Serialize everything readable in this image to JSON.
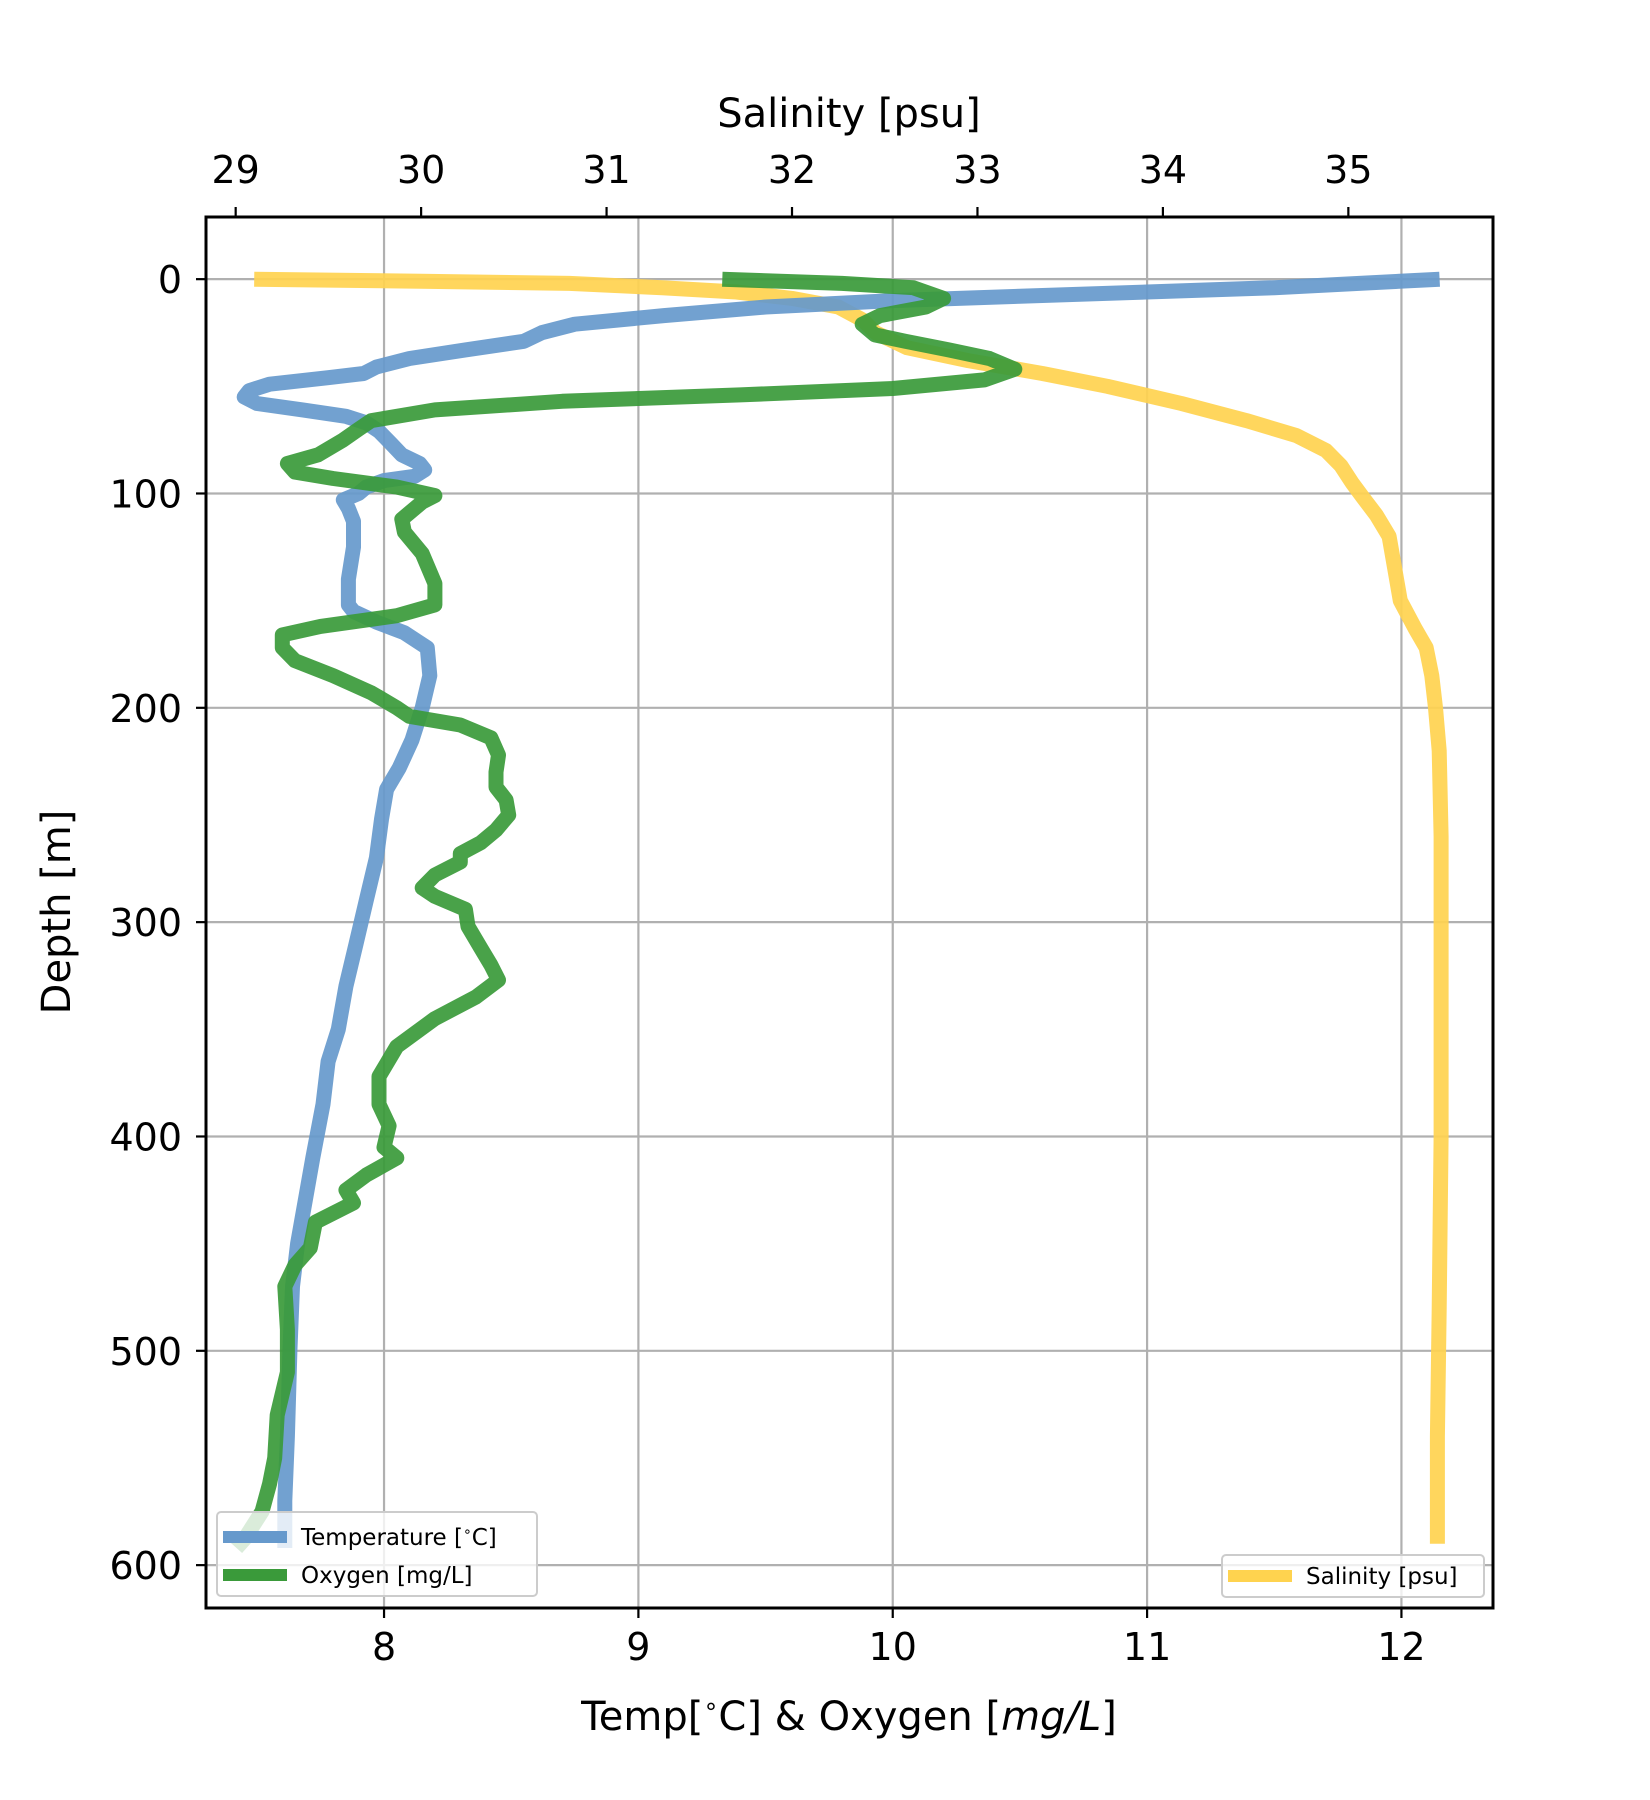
{
  "chart_data": {
    "type": "line",
    "xlabel": "Temp[$^\\circ$C] & Oxygen [$mg/L$]",
    "xlabel_parts": {
      "temp": "Temp[",
      "deg": "∘",
      "c_and": "C] & Oxygen [",
      "unit": "mg/L",
      "close": "]"
    },
    "x2label": "Salinity [psu]",
    "ylabel": "Depth [m]",
    "xlim": [
      7.3,
      12.36
    ],
    "x2lim": [
      28.84,
      35.78
    ],
    "ylim": [
      620,
      -29
    ],
    "y_inverted": true,
    "grid": true,
    "xticks": [
      8,
      9,
      10,
      11,
      12
    ],
    "x2ticks": [
      29,
      30,
      31,
      32,
      33,
      34,
      35
    ],
    "yticks": [
      0,
      100,
      200,
      300,
      400,
      500,
      600
    ],
    "legend_main": {
      "placement": "lower-left",
      "entries": [
        "Temperature [$^\\circ$C]",
        "Oxygen [mg/L]"
      ],
      "temp_parts": {
        "a": "Temperature [",
        "deg": "∘",
        "b": "C]"
      },
      "oxygen_label": "Oxygen [mg/L]"
    },
    "legend_salinity": {
      "placement": "lower-right",
      "label": "Salinity [psu]"
    },
    "series": [
      {
        "name": "Temperature [°C]",
        "axis": "bottom",
        "color": "#6699cc",
        "points": [
          [
            12.15,
            0
          ],
          [
            11.5,
            4
          ],
          [
            10.5,
            8
          ],
          [
            10.0,
            10
          ],
          [
            9.5,
            13
          ],
          [
            9.1,
            17
          ],
          [
            8.75,
            21
          ],
          [
            8.62,
            25
          ],
          [
            8.55,
            29
          ],
          [
            8.32,
            33
          ],
          [
            8.1,
            37
          ],
          [
            7.97,
            41
          ],
          [
            7.92,
            44
          ],
          [
            7.78,
            46
          ],
          [
            7.55,
            49
          ],
          [
            7.47,
            52
          ],
          [
            7.45,
            55
          ],
          [
            7.5,
            58
          ],
          [
            7.68,
            61
          ],
          [
            7.85,
            64
          ],
          [
            7.93,
            67
          ],
          [
            7.98,
            71
          ],
          [
            8.03,
            77
          ],
          [
            8.07,
            82
          ],
          [
            8.14,
            86
          ],
          [
            8.16,
            89
          ],
          [
            8.12,
            92
          ],
          [
            8.0,
            94
          ],
          [
            7.93,
            97
          ],
          [
            7.9,
            100
          ],
          [
            7.84,
            103
          ],
          [
            7.86,
            107
          ],
          [
            7.88,
            113
          ],
          [
            7.88,
            125
          ],
          [
            7.86,
            140
          ],
          [
            7.86,
            152
          ],
          [
            7.88,
            155
          ],
          [
            7.97,
            160
          ],
          [
            8.08,
            165
          ],
          [
            8.17,
            172
          ],
          [
            8.18,
            185
          ],
          [
            8.15,
            200
          ],
          [
            8.11,
            215
          ],
          [
            8.06,
            228
          ],
          [
            8.01,
            238
          ],
          [
            7.99,
            252
          ],
          [
            7.97,
            270
          ],
          [
            7.93,
            290
          ],
          [
            7.89,
            310
          ],
          [
            7.85,
            330
          ],
          [
            7.82,
            350
          ],
          [
            7.78,
            365
          ],
          [
            7.76,
            385
          ],
          [
            7.72,
            410
          ],
          [
            7.69,
            430
          ],
          [
            7.66,
            450
          ],
          [
            7.64,
            470
          ],
          [
            7.63,
            500
          ],
          [
            7.62,
            540
          ],
          [
            7.61,
            570
          ],
          [
            7.61,
            592
          ]
        ]
      },
      {
        "name": "Oxygen [mg/L]",
        "axis": "bottom",
        "color": "#3a9a3a",
        "points": [
          [
            9.33,
            0
          ],
          [
            9.8,
            2
          ],
          [
            10.08,
            4
          ],
          [
            10.2,
            9
          ],
          [
            10.13,
            13
          ],
          [
            9.95,
            17
          ],
          [
            9.88,
            21
          ],
          [
            9.93,
            26
          ],
          [
            10.05,
            29
          ],
          [
            10.22,
            33
          ],
          [
            10.38,
            37
          ],
          [
            10.48,
            42
          ],
          [
            10.36,
            47
          ],
          [
            10.0,
            51
          ],
          [
            9.4,
            54
          ],
          [
            8.7,
            57
          ],
          [
            8.2,
            61
          ],
          [
            7.95,
            66
          ],
          [
            7.9,
            70
          ],
          [
            7.84,
            75
          ],
          [
            7.74,
            82
          ],
          [
            7.62,
            86
          ],
          [
            7.65,
            90
          ],
          [
            7.8,
            93
          ],
          [
            8.05,
            97
          ],
          [
            8.2,
            101
          ],
          [
            8.15,
            104
          ],
          [
            8.07,
            112
          ],
          [
            8.08,
            118
          ],
          [
            8.15,
            128
          ],
          [
            8.2,
            142
          ],
          [
            8.2,
            152
          ],
          [
            8.05,
            157
          ],
          [
            7.75,
            162
          ],
          [
            7.6,
            166
          ],
          [
            7.6,
            172
          ],
          [
            7.65,
            178
          ],
          [
            7.8,
            185
          ],
          [
            7.95,
            193
          ],
          [
            8.05,
            200
          ],
          [
            8.1,
            204
          ],
          [
            8.3,
            208
          ],
          [
            8.42,
            214
          ],
          [
            8.45,
            222
          ],
          [
            8.44,
            230
          ],
          [
            8.44,
            237
          ],
          [
            8.48,
            243
          ],
          [
            8.49,
            250
          ],
          [
            8.44,
            257
          ],
          [
            8.38,
            263
          ],
          [
            8.3,
            268
          ],
          [
            8.3,
            272
          ],
          [
            8.2,
            278
          ],
          [
            8.15,
            284
          ],
          [
            8.2,
            288
          ],
          [
            8.32,
            294
          ],
          [
            8.33,
            302
          ],
          [
            8.38,
            312
          ],
          [
            8.42,
            320
          ],
          [
            8.45,
            327
          ],
          [
            8.36,
            335
          ],
          [
            8.2,
            345
          ],
          [
            8.05,
            358
          ],
          [
            7.98,
            372
          ],
          [
            7.98,
            385
          ],
          [
            8.02,
            395
          ],
          [
            8.0,
            405
          ],
          [
            8.05,
            410
          ],
          [
            7.93,
            418
          ],
          [
            7.85,
            425
          ],
          [
            7.88,
            431
          ],
          [
            7.73,
            440
          ],
          [
            7.71,
            452
          ],
          [
            7.65,
            460
          ],
          [
            7.61,
            470
          ],
          [
            7.62,
            490
          ],
          [
            7.62,
            510
          ],
          [
            7.58,
            530
          ],
          [
            7.57,
            550
          ],
          [
            7.55,
            562
          ],
          [
            7.52,
            575
          ],
          [
            7.45,
            588
          ],
          [
            7.42,
            592
          ]
        ]
      },
      {
        "name": "Salinity [psu]",
        "axis": "top",
        "color": "#ffd34f",
        "points": [
          [
            29.1,
            0
          ],
          [
            30.0,
            1
          ],
          [
            30.8,
            2
          ],
          [
            31.3,
            4
          ],
          [
            31.7,
            6
          ],
          [
            32.0,
            9
          ],
          [
            32.25,
            13
          ],
          [
            32.38,
            19
          ],
          [
            32.45,
            25
          ],
          [
            32.62,
            32
          ],
          [
            32.95,
            38
          ],
          [
            33.35,
            44
          ],
          [
            33.7,
            50
          ],
          [
            34.1,
            58
          ],
          [
            34.45,
            66
          ],
          [
            34.72,
            73
          ],
          [
            34.88,
            80
          ],
          [
            34.96,
            87
          ],
          [
            35.02,
            95
          ],
          [
            35.08,
            102
          ],
          [
            35.15,
            110
          ],
          [
            35.22,
            120
          ],
          [
            35.25,
            135
          ],
          [
            35.28,
            150
          ],
          [
            35.36,
            163
          ],
          [
            35.42,
            172
          ],
          [
            35.45,
            185
          ],
          [
            35.47,
            200
          ],
          [
            35.49,
            220
          ],
          [
            35.5,
            260
          ],
          [
            35.5,
            320
          ],
          [
            35.5,
            400
          ],
          [
            35.49,
            480
          ],
          [
            35.48,
            540
          ],
          [
            35.48,
            590
          ]
        ]
      }
    ]
  }
}
